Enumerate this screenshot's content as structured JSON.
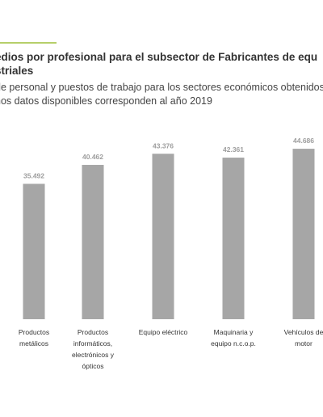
{
  "header": {
    "title_lines": [
      "edios por profesional para el subsector de Fabricantes de equ",
      "striales"
    ],
    "subtitle_lines": [
      "de personal y puestos de trabajo para los sectores económicos obtenidos",
      "nos datos disponibles corresponden al año 2019"
    ]
  },
  "colors": {
    "accent": "#b6cf6a",
    "bar": "#a6a6a6",
    "text": "#333333",
    "data_label": "#9e9e9e"
  },
  "chart_data": {
    "type": "bar",
    "title": "edios por profesional para el subsector de Fabricantes de equ striales",
    "categories": [
      [
        "Productos",
        "metálicos"
      ],
      [
        "Productos",
        "informáticos,",
        "electrónicos y",
        "ópticos"
      ],
      [
        "Equipo eléctrico"
      ],
      [
        "Maquinaria y",
        "equipo n.c.o.p."
      ],
      [
        "Vehículos de",
        "motor"
      ]
    ],
    "values": [
      35492,
      40462,
      43376,
      42361,
      44686
    ],
    "data_labels": [
      "35.492",
      "40.462",
      "43.376",
      "42.361",
      "44.686"
    ],
    "ylim": [
      0,
      50000
    ],
    "grid": false,
    "legend": "none"
  }
}
